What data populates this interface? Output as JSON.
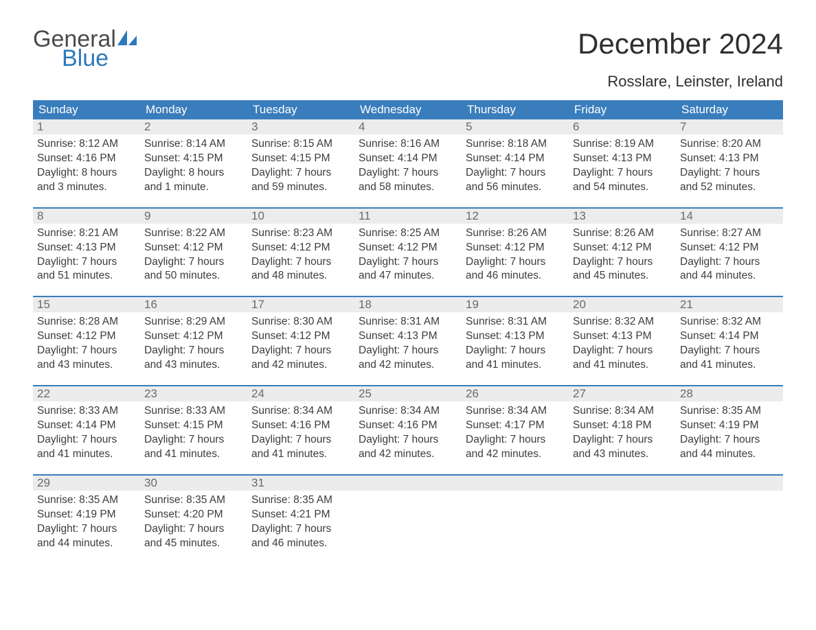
{
  "logo": {
    "word1": "General",
    "word2": "Blue",
    "color1": "#4a4a4a",
    "color2": "#2d78bb"
  },
  "title": "December 2024",
  "location": "Rosslare, Leinster, Ireland",
  "colors": {
    "header_bg": "#3a7dbc",
    "header_text": "#ffffff",
    "daynum_bg": "#ececec",
    "daynum_text": "#6a6a6a",
    "body_text": "#3c3c3c",
    "row_border": "#3a7dbc",
    "page_bg": "#ffffff"
  },
  "fonts": {
    "title_pt": 42,
    "location_pt": 22,
    "dayhead_pt": 17,
    "cell_pt": 15.5
  },
  "weekdays": [
    "Sunday",
    "Monday",
    "Tuesday",
    "Wednesday",
    "Thursday",
    "Friday",
    "Saturday"
  ],
  "weeks": [
    [
      {
        "n": "1",
        "sr": "Sunrise: 8:12 AM",
        "ss": "Sunset: 4:16 PM",
        "d1": "Daylight: 8 hours",
        "d2": "and 3 minutes."
      },
      {
        "n": "2",
        "sr": "Sunrise: 8:14 AM",
        "ss": "Sunset: 4:15 PM",
        "d1": "Daylight: 8 hours",
        "d2": "and 1 minute."
      },
      {
        "n": "3",
        "sr": "Sunrise: 8:15 AM",
        "ss": "Sunset: 4:15 PM",
        "d1": "Daylight: 7 hours",
        "d2": "and 59 minutes."
      },
      {
        "n": "4",
        "sr": "Sunrise: 8:16 AM",
        "ss": "Sunset: 4:14 PM",
        "d1": "Daylight: 7 hours",
        "d2": "and 58 minutes."
      },
      {
        "n": "5",
        "sr": "Sunrise: 8:18 AM",
        "ss": "Sunset: 4:14 PM",
        "d1": "Daylight: 7 hours",
        "d2": "and 56 minutes."
      },
      {
        "n": "6",
        "sr": "Sunrise: 8:19 AM",
        "ss": "Sunset: 4:13 PM",
        "d1": "Daylight: 7 hours",
        "d2": "and 54 minutes."
      },
      {
        "n": "7",
        "sr": "Sunrise: 8:20 AM",
        "ss": "Sunset: 4:13 PM",
        "d1": "Daylight: 7 hours",
        "d2": "and 52 minutes."
      }
    ],
    [
      {
        "n": "8",
        "sr": "Sunrise: 8:21 AM",
        "ss": "Sunset: 4:13 PM",
        "d1": "Daylight: 7 hours",
        "d2": "and 51 minutes."
      },
      {
        "n": "9",
        "sr": "Sunrise: 8:22 AM",
        "ss": "Sunset: 4:12 PM",
        "d1": "Daylight: 7 hours",
        "d2": "and 50 minutes."
      },
      {
        "n": "10",
        "sr": "Sunrise: 8:23 AM",
        "ss": "Sunset: 4:12 PM",
        "d1": "Daylight: 7 hours",
        "d2": "and 48 minutes."
      },
      {
        "n": "11",
        "sr": "Sunrise: 8:25 AM",
        "ss": "Sunset: 4:12 PM",
        "d1": "Daylight: 7 hours",
        "d2": "and 47 minutes."
      },
      {
        "n": "12",
        "sr": "Sunrise: 8:26 AM",
        "ss": "Sunset: 4:12 PM",
        "d1": "Daylight: 7 hours",
        "d2": "and 46 minutes."
      },
      {
        "n": "13",
        "sr": "Sunrise: 8:26 AM",
        "ss": "Sunset: 4:12 PM",
        "d1": "Daylight: 7 hours",
        "d2": "and 45 minutes."
      },
      {
        "n": "14",
        "sr": "Sunrise: 8:27 AM",
        "ss": "Sunset: 4:12 PM",
        "d1": "Daylight: 7 hours",
        "d2": "and 44 minutes."
      }
    ],
    [
      {
        "n": "15",
        "sr": "Sunrise: 8:28 AM",
        "ss": "Sunset: 4:12 PM",
        "d1": "Daylight: 7 hours",
        "d2": "and 43 minutes."
      },
      {
        "n": "16",
        "sr": "Sunrise: 8:29 AM",
        "ss": "Sunset: 4:12 PM",
        "d1": "Daylight: 7 hours",
        "d2": "and 43 minutes."
      },
      {
        "n": "17",
        "sr": "Sunrise: 8:30 AM",
        "ss": "Sunset: 4:12 PM",
        "d1": "Daylight: 7 hours",
        "d2": "and 42 minutes."
      },
      {
        "n": "18",
        "sr": "Sunrise: 8:31 AM",
        "ss": "Sunset: 4:13 PM",
        "d1": "Daylight: 7 hours",
        "d2": "and 42 minutes."
      },
      {
        "n": "19",
        "sr": "Sunrise: 8:31 AM",
        "ss": "Sunset: 4:13 PM",
        "d1": "Daylight: 7 hours",
        "d2": "and 41 minutes."
      },
      {
        "n": "20",
        "sr": "Sunrise: 8:32 AM",
        "ss": "Sunset: 4:13 PM",
        "d1": "Daylight: 7 hours",
        "d2": "and 41 minutes."
      },
      {
        "n": "21",
        "sr": "Sunrise: 8:32 AM",
        "ss": "Sunset: 4:14 PM",
        "d1": "Daylight: 7 hours",
        "d2": "and 41 minutes."
      }
    ],
    [
      {
        "n": "22",
        "sr": "Sunrise: 8:33 AM",
        "ss": "Sunset: 4:14 PM",
        "d1": "Daylight: 7 hours",
        "d2": "and 41 minutes."
      },
      {
        "n": "23",
        "sr": "Sunrise: 8:33 AM",
        "ss": "Sunset: 4:15 PM",
        "d1": "Daylight: 7 hours",
        "d2": "and 41 minutes."
      },
      {
        "n": "24",
        "sr": "Sunrise: 8:34 AM",
        "ss": "Sunset: 4:16 PM",
        "d1": "Daylight: 7 hours",
        "d2": "and 41 minutes."
      },
      {
        "n": "25",
        "sr": "Sunrise: 8:34 AM",
        "ss": "Sunset: 4:16 PM",
        "d1": "Daylight: 7 hours",
        "d2": "and 42 minutes."
      },
      {
        "n": "26",
        "sr": "Sunrise: 8:34 AM",
        "ss": "Sunset: 4:17 PM",
        "d1": "Daylight: 7 hours",
        "d2": "and 42 minutes."
      },
      {
        "n": "27",
        "sr": "Sunrise: 8:34 AM",
        "ss": "Sunset: 4:18 PM",
        "d1": "Daylight: 7 hours",
        "d2": "and 43 minutes."
      },
      {
        "n": "28",
        "sr": "Sunrise: 8:35 AM",
        "ss": "Sunset: 4:19 PM",
        "d1": "Daylight: 7 hours",
        "d2": "and 44 minutes."
      }
    ],
    [
      {
        "n": "29",
        "sr": "Sunrise: 8:35 AM",
        "ss": "Sunset: 4:19 PM",
        "d1": "Daylight: 7 hours",
        "d2": "and 44 minutes."
      },
      {
        "n": "30",
        "sr": "Sunrise: 8:35 AM",
        "ss": "Sunset: 4:20 PM",
        "d1": "Daylight: 7 hours",
        "d2": "and 45 minutes."
      },
      {
        "n": "31",
        "sr": "Sunrise: 8:35 AM",
        "ss": "Sunset: 4:21 PM",
        "d1": "Daylight: 7 hours",
        "d2": "and 46 minutes."
      },
      null,
      null,
      null,
      null
    ]
  ]
}
